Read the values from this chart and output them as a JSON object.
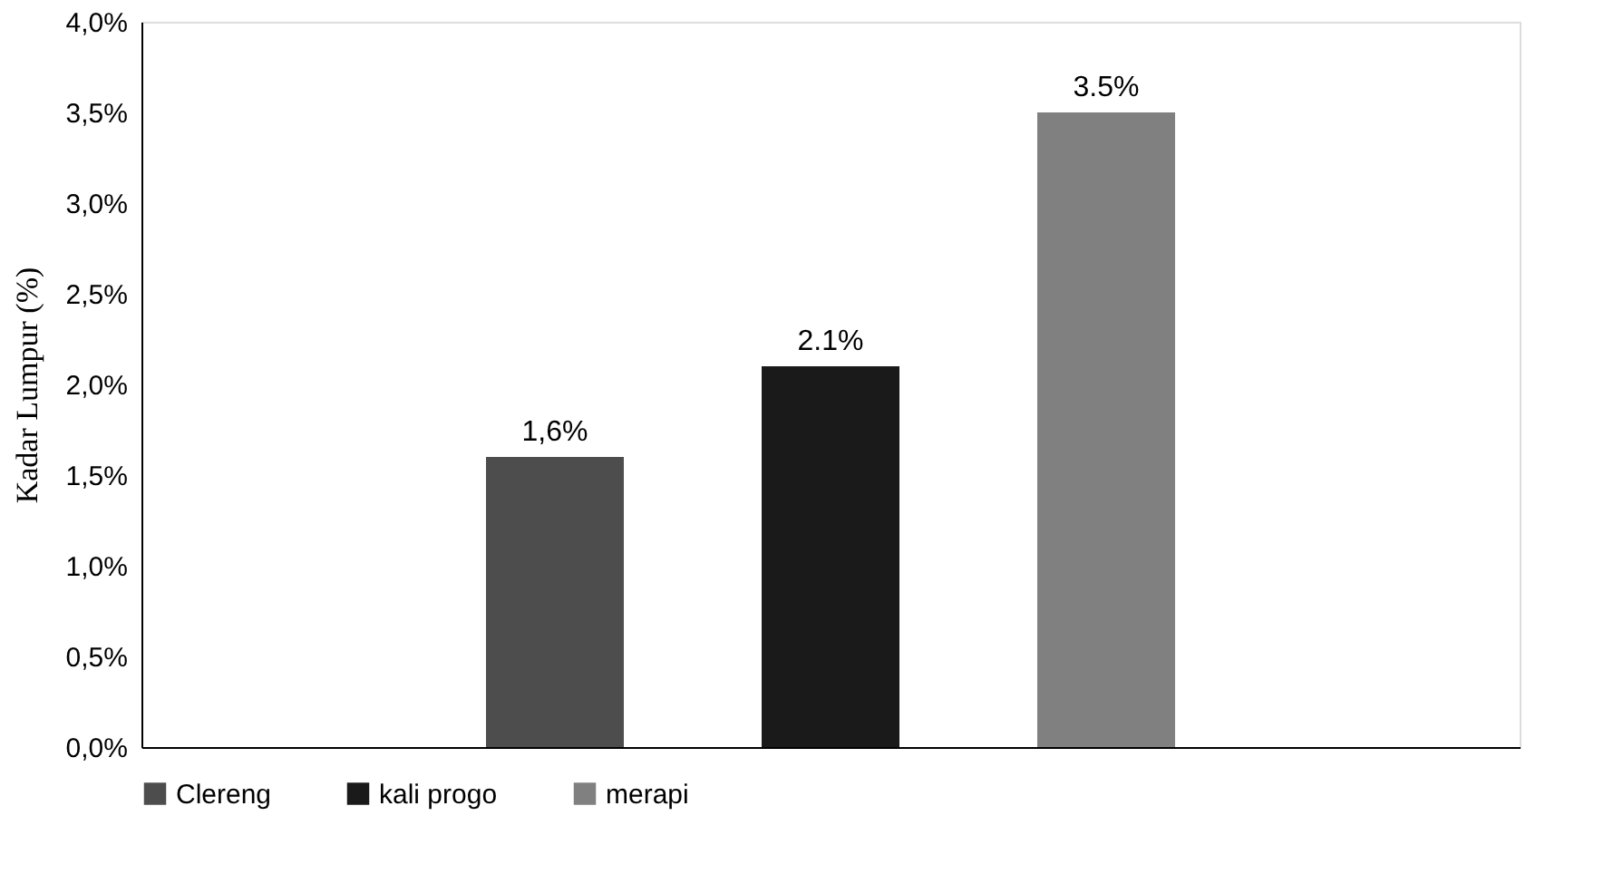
{
  "chart_data": {
    "type": "bar",
    "ylabel": "Kadar Lumpur (%)",
    "categories": [
      null
    ],
    "series": [
      {
        "name": "Clereng",
        "color": "#4d4d4d",
        "values": [
          1.6
        ],
        "value_labels": [
          "1,6%"
        ]
      },
      {
        "name": "kali progo",
        "color": "#1a1a1a",
        "values": [
          2.1
        ],
        "value_labels": [
          "2.1%"
        ]
      },
      {
        "name": "merapi",
        "color": "#808080",
        "values": [
          3.5
        ],
        "value_labels": [
          "3.5%"
        ]
      }
    ],
    "ylim": [
      0,
      4
    ],
    "yticks": [
      {
        "value": 0,
        "label": "0,0%"
      },
      {
        "value": 0.5,
        "label": "0,5%"
      },
      {
        "value": 1,
        "label": "1,0%"
      },
      {
        "value": 1.5,
        "label": "1,5%"
      },
      {
        "value": 2,
        "label": "2,0%"
      },
      {
        "value": 2.5,
        "label": "2,5%"
      },
      {
        "value": 3,
        "label": "3,0%"
      },
      {
        "value": 3.5,
        "label": "3,5%"
      },
      {
        "value": 4,
        "label": "4,0%"
      }
    ],
    "grid": false,
    "legend": "bottom"
  }
}
